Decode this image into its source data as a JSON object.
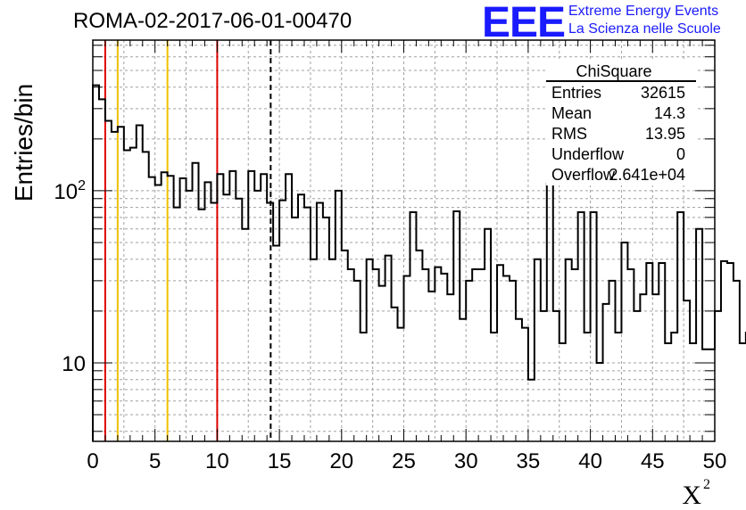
{
  "header": {
    "run_title": "ROMA-02-2017-06-01-00470",
    "logo_mark": "EEE",
    "logo_line1": "Extreme Energy Events",
    "logo_line2": "La Scienza nelle Scuole"
  },
  "stats": {
    "title": "ChiSquare",
    "rows": [
      {
        "label": "Entries",
        "value": "32615"
      },
      {
        "label": "Mean",
        "value": "14.3"
      },
      {
        "label": "RMS",
        "value": "13.95"
      },
      {
        "label": "Underflow",
        "value": "0"
      },
      {
        "label": "Overflow",
        "value": "2.641e+04"
      }
    ]
  },
  "colors": {
    "histogram": "#000000",
    "red_lines": "#e00000",
    "yellow_lines": "#f0c000",
    "grid": "#a0a0a0",
    "logo": "#1a1aff"
  },
  "chart_data": {
    "type": "bar",
    "style": "step-histogram",
    "xlabel": "X",
    "xlabel_superscript": "2",
    "ylabel": "Entries/bin",
    "xlim": [
      0,
      50
    ],
    "ylim": [
      3.5,
      750
    ],
    "y_scale": "log",
    "grid": true,
    "bin_width": 0.5,
    "x_ticks": [
      0,
      5,
      10,
      15,
      20,
      25,
      30,
      35,
      40,
      45,
      50
    ],
    "y_tick_labels": [
      {
        "value": 10,
        "label": "10"
      },
      {
        "value": 100,
        "label": "10^2"
      }
    ],
    "vertical_lines": [
      {
        "x": 1,
        "color": "red",
        "style": "solid"
      },
      {
        "x": 2,
        "color": "yellow",
        "style": "solid"
      },
      {
        "x": 6,
        "color": "yellow",
        "style": "solid"
      },
      {
        "x": 10,
        "color": "red",
        "style": "solid"
      },
      {
        "x": 14.3,
        "color": "black",
        "style": "dashed"
      }
    ],
    "values": [
      410,
      340,
      255,
      220,
      235,
      172,
      178,
      240,
      168,
      120,
      108,
      128,
      122,
      80,
      118,
      100,
      145,
      78,
      112,
      85,
      125,
      95,
      130,
      90,
      60,
      130,
      100,
      125,
      85,
      48,
      88,
      125,
      70,
      95,
      80,
      40,
      85,
      70,
      40,
      100,
      45,
      35,
      30,
      15,
      40,
      35,
      28,
      42,
      21,
      16,
      32,
      75,
      45,
      35,
      26,
      36,
      33,
      25,
      76,
      18,
      30,
      35,
      35,
      60,
      15,
      37,
      32,
      30,
      18,
      16,
      8,
      40,
      20,
      110,
      20,
      13,
      40,
      35,
      75,
      15,
      75,
      10,
      22,
      30,
      15,
      50,
      35,
      20,
      25,
      38,
      25,
      38,
      13,
      15,
      75,
      23,
      13,
      60,
      12,
      12,
      20,
      39,
      38,
      30,
      13,
      15,
      65,
      15,
      68,
      30,
      12,
      12,
      8,
      32,
      12,
      11,
      20,
      28,
      21,
      30,
      15,
      25,
      75,
      28,
      60,
      38,
      28,
      40,
      13,
      35,
      33,
      10,
      25,
      15,
      10,
      35,
      8,
      30,
      20,
      18,
      35,
      10,
      25,
      29,
      10,
      65,
      8,
      22,
      10,
      40,
      22,
      15,
      25,
      8,
      70,
      15,
      10,
      20,
      30,
      25,
      20,
      10,
      15,
      28,
      10,
      55,
      15,
      10,
      8,
      20,
      30,
      25,
      15,
      20,
      10,
      70,
      20,
      12,
      20,
      30,
      55,
      25,
      8,
      10,
      12,
      20,
      10,
      15,
      65,
      8,
      35,
      10,
      60,
      25,
      18,
      8,
      20,
      12,
      10,
      30,
      15,
      7,
      15,
      30,
      10,
      60,
      9,
      12,
      20,
      65,
      11,
      12,
      10,
      8,
      15,
      25,
      12,
      10,
      20,
      8,
      45,
      8,
      11,
      12,
      20,
      12,
      8,
      8,
      10,
      12,
      10,
      40,
      8,
      10,
      15,
      30,
      10,
      8,
      10,
      12,
      8,
      65,
      20,
      12,
      10,
      8,
      12,
      13,
      14,
      12,
      13,
      14,
      15,
      12,
      13,
      14,
      13,
      12,
      13,
      14,
      15,
      12,
      13,
      14,
      13,
      12
    ]
  }
}
